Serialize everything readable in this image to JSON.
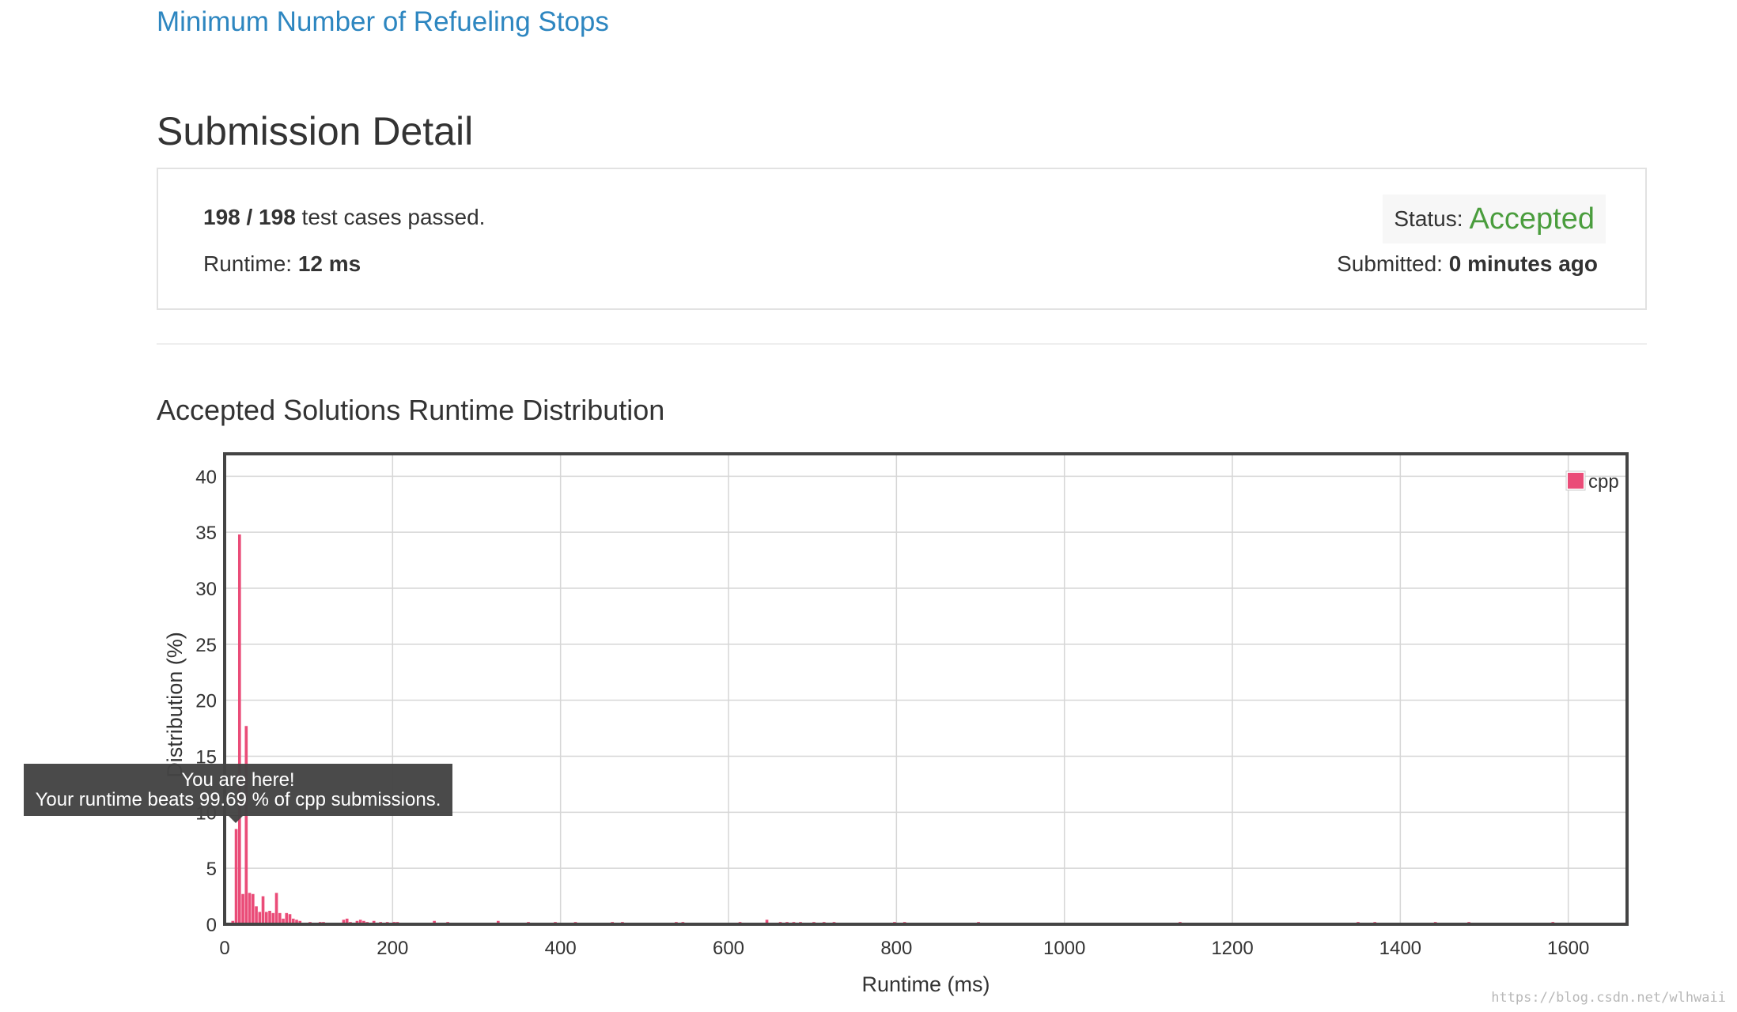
{
  "problem": {
    "title": "Minimum Number of Refueling Stops"
  },
  "page": {
    "title": "Submission Detail"
  },
  "summary": {
    "passed": "198 / 198",
    "passed_suffix": " test cases passed.",
    "runtime_label": "Runtime: ",
    "runtime_value": "12 ms",
    "status_label": "Status:",
    "status_value": "Accepted",
    "submitted_label": "Submitted: ",
    "submitted_value": "0 minutes ago"
  },
  "distribution": {
    "title": "Accepted Solutions Runtime Distribution"
  },
  "tooltip": {
    "line1": "You are here!",
    "line2": "Your runtime beats 99.69 % of cpp submissions."
  },
  "watermark": "https://blog.csdn.net/wlhwaii",
  "colors": {
    "bar": "#ea4c78",
    "accepted": "#4a9d3d",
    "link": "#2d86c0",
    "tooltip_bg": "#444444"
  },
  "chart_data": {
    "type": "bar",
    "xlabel": "Runtime (ms)",
    "ylabel": "Distribution (%)",
    "xlim": [
      0,
      1670
    ],
    "ylim": [
      0,
      42
    ],
    "xticks": [
      0,
      200,
      400,
      600,
      800,
      1000,
      1200,
      1400,
      1600
    ],
    "yticks": [
      0,
      5,
      10,
      15,
      20,
      25,
      30,
      35,
      40
    ],
    "grid": true,
    "legend": "top-right",
    "series": [
      {
        "name": "cpp",
        "color": "#ea4c78",
        "bin_width": 4,
        "x": [
          8,
          12,
          16,
          20,
          24,
          28,
          32,
          36,
          40,
          44,
          48,
          52,
          56,
          60,
          64,
          68,
          72,
          76,
          80,
          84,
          88,
          92,
          100,
          112,
          116,
          140,
          144,
          148,
          156,
          160,
          164,
          168,
          176,
          184,
          192,
          200,
          204,
          248,
          264,
          324,
          360,
          392,
          416,
          460,
          472,
          536,
          544,
          612,
          644,
          660,
          668,
          676,
          684,
          700,
          712,
          724,
          796,
          808,
          896,
          1136,
          1348,
          1368,
          1440,
          1480,
          1580,
          1668
        ],
        "values": [
          0.3,
          8.5,
          34.8,
          2.7,
          17.7,
          2.8,
          2.7,
          1.6,
          1.1,
          2.5,
          1.1,
          1.2,
          1.0,
          2.8,
          1.0,
          0.5,
          1.0,
          0.9,
          0.5,
          0.4,
          0.3,
          0.1,
          0.2,
          0.2,
          0.2,
          0.4,
          0.5,
          0.2,
          0.3,
          0.4,
          0.3,
          0.2,
          0.3,
          0.2,
          0.2,
          0.2,
          0.2,
          0.3,
          0.2,
          0.3,
          0.2,
          0.2,
          0.2,
          0.2,
          0.2,
          0.2,
          0.2,
          0.2,
          0.4,
          0.2,
          0.2,
          0.2,
          0.2,
          0.2,
          0.2,
          0.2,
          0.2,
          0.2,
          0.2,
          0.2,
          0.2,
          0.2,
          0.2,
          0.2,
          0.2,
          0.2
        ]
      }
    ]
  }
}
